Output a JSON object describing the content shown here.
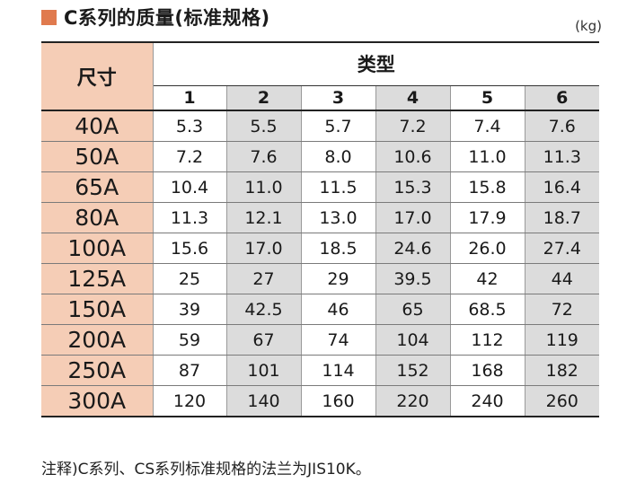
{
  "title": "C系列的质量(标准规格)",
  "unit": "(kg)",
  "table": {
    "size_header": "尺寸",
    "type_header": "类型",
    "types": [
      "1",
      "2",
      "3",
      "4",
      "5",
      "6"
    ],
    "rows": [
      {
        "size": "40A",
        "values": [
          "5.3",
          "5.5",
          "5.7",
          "7.2",
          "7.4",
          "7.6"
        ]
      },
      {
        "size": "50A",
        "values": [
          "7.2",
          "7.6",
          "8.0",
          "10.6",
          "11.0",
          "11.3"
        ]
      },
      {
        "size": "65A",
        "values": [
          "10.4",
          "11.0",
          "11.5",
          "15.3",
          "15.8",
          "16.4"
        ]
      },
      {
        "size": "80A",
        "values": [
          "11.3",
          "12.1",
          "13.0",
          "17.0",
          "17.9",
          "18.7"
        ]
      },
      {
        "size": "100A",
        "values": [
          "15.6",
          "17.0",
          "18.5",
          "24.6",
          "26.0",
          "27.4"
        ]
      },
      {
        "size": "125A",
        "values": [
          "25",
          "27",
          "29",
          "39.5",
          "42",
          "44"
        ]
      },
      {
        "size": "150A",
        "values": [
          "39",
          "42.5",
          "46",
          "65",
          "68.5",
          "72"
        ]
      },
      {
        "size": "200A",
        "values": [
          "59",
          "67",
          "74",
          "104",
          "112",
          "119"
        ]
      },
      {
        "size": "250A",
        "values": [
          "87",
          "101",
          "114",
          "152",
          "168",
          "182"
        ]
      },
      {
        "size": "300A",
        "values": [
          "120",
          "140",
          "160",
          "220",
          "240",
          "260"
        ]
      }
    ]
  },
  "note": "注释)C系列、CS系列标准规格的法兰为JIS10K。",
  "colors": {
    "accent": "#e07a4e",
    "size_bg": "#f5cdb6",
    "shade": "#dcdcdc"
  }
}
